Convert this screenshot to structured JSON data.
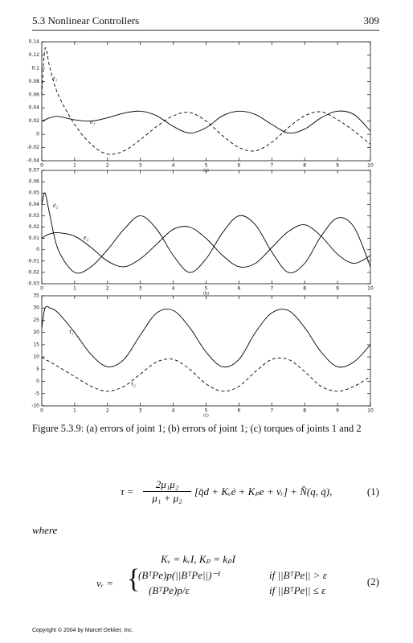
{
  "header": {
    "section": "5.3 Nonlinear Controllers",
    "page": "309"
  },
  "chart_data": [
    {
      "type": "line",
      "xlabel": "(a)",
      "xlim": [
        0,
        10
      ],
      "xticks": [
        0,
        1,
        2,
        3,
        4,
        5,
        6,
        7,
        8,
        9,
        10
      ],
      "ylim": [
        -0.04,
        0.14
      ],
      "yticks": [
        -0.04,
        -0.02,
        0,
        0.02,
        0.04,
        0.06,
        0.08,
        0.1,
        0.12,
        0.14
      ],
      "x": [
        0,
        0.1,
        0.25,
        0.5,
        1,
        1.5,
        2,
        2.5,
        3,
        3.5,
        4,
        4.5,
        5,
        5.5,
        6,
        6.5,
        7,
        7.5,
        8,
        8.5,
        9,
        9.5,
        10
      ],
      "series": [
        {
          "name": "ė₁",
          "color": "#000000",
          "dashed": true,
          "values": [
            0.06,
            0.13,
            0.1,
            0.06,
            0.015,
            -0.015,
            -0.03,
            -0.025,
            -0.008,
            0.012,
            0.028,
            0.033,
            0.02,
            -0.002,
            -0.02,
            -0.025,
            -0.012,
            0.01,
            0.028,
            0.034,
            0.022,
            0.005,
            -0.015
          ]
        },
        {
          "name": "e₁",
          "color": "#000000",
          "dashed": false,
          "values": [
            0.02,
            0.022,
            0.025,
            0.027,
            0.022,
            0.02,
            0.025,
            0.032,
            0.035,
            0.028,
            0.012,
            0.002,
            0.01,
            0.028,
            0.035,
            0.03,
            0.015,
            0.002,
            0.008,
            0.025,
            0.035,
            0.03,
            0.005
          ]
        }
      ]
    },
    {
      "type": "line",
      "xlabel": "(b)",
      "xlim": [
        0,
        10
      ],
      "xticks": [
        0,
        1,
        2,
        3,
        4,
        5,
        6,
        7,
        8,
        9,
        10
      ],
      "ylim": [
        -0.03,
        0.07
      ],
      "yticks": [
        -0.03,
        -0.02,
        -0.01,
        0,
        0.01,
        0.02,
        0.03,
        0.04,
        0.05,
        0.06,
        0.07
      ],
      "x": [
        0,
        0.1,
        0.25,
        0.5,
        1,
        1.5,
        2,
        2.5,
        3,
        3.5,
        4,
        4.5,
        5,
        5.5,
        6,
        6.5,
        7,
        7.5,
        8,
        8.5,
        9,
        9.5,
        10
      ],
      "series": [
        {
          "name": "ė₂",
          "color": "#000000",
          "dashed": false,
          "values": [
            0.04,
            0.05,
            0.03,
            0.0,
            -0.02,
            -0.015,
            0.0,
            0.018,
            0.03,
            0.018,
            -0.005,
            -0.02,
            -0.008,
            0.015,
            0.03,
            0.022,
            -0.002,
            -0.02,
            -0.012,
            0.012,
            0.028,
            0.02,
            -0.015
          ]
        },
        {
          "name": "e₂",
          "color": "#000000",
          "dashed": false,
          "values": [
            0.01,
            0.012,
            0.014,
            0.015,
            0.012,
            0.002,
            -0.01,
            -0.015,
            -0.008,
            0.005,
            0.018,
            0.02,
            0.01,
            -0.005,
            -0.015,
            -0.012,
            0.002,
            0.016,
            0.022,
            0.012,
            -0.004,
            -0.012,
            -0.005
          ]
        }
      ]
    },
    {
      "type": "line",
      "xlabel": "(c)",
      "xlim": [
        0,
        10
      ],
      "xticks": [
        0,
        1,
        2,
        3,
        4,
        5,
        6,
        7,
        8,
        9,
        10
      ],
      "ylim": [
        -10,
        35
      ],
      "yticks": [
        -10,
        -5,
        0,
        5,
        10,
        15,
        20,
        25,
        30,
        35
      ],
      "x": [
        0,
        0.1,
        0.25,
        0.5,
        1,
        1.5,
        2,
        2.5,
        3,
        3.5,
        4,
        4.5,
        5,
        5.5,
        6,
        6.5,
        7,
        7.5,
        8,
        8.5,
        9,
        9.5,
        10
      ],
      "series": [
        {
          "name": "τ₁",
          "color": "#000000",
          "dashed": false,
          "values": [
            22,
            30,
            30,
            28,
            20,
            11,
            6,
            9,
            19,
            28,
            29,
            22,
            12,
            6,
            9,
            20,
            28,
            29,
            22,
            12,
            6,
            8,
            15
          ]
        },
        {
          "name": "τ₂",
          "color": "#000000",
          "dashed": true,
          "values": [
            10,
            9,
            8,
            6,
            2,
            -2,
            -4,
            -2,
            3,
            8,
            9,
            5,
            -1,
            -4,
            -2,
            4,
            9,
            9,
            4,
            -2,
            -4,
            -2,
            2
          ]
        }
      ]
    }
  ],
  "caption": "Figure 5.3.9: (a) errors of joint 1; (b) errors of joint 1; (c) torques of joints 1 and 2",
  "equation1": {
    "lhs": "τ =",
    "numerator": "2μ₁μ₂",
    "denominator": "μ₁ + μ₂",
    "rest": "[q̈d + Kᵥė + Kₚe + vᵣ] + N̂(q, q̇),",
    "number": "(1)"
  },
  "where": "where",
  "equation2": {
    "gains": "Kᵥ = kᵥI,    Kₚ = kₚI",
    "lhs": "vᵣ =",
    "case1": "(BᵀPe)p(||BᵀPe||)⁻¹",
    "cond1": "if ||BᵀPe|| > ε",
    "case2": "(BᵀPe)p/ε",
    "cond2": "if ||BᵀPe|| ≤ ε",
    "number": "(2)"
  },
  "footer": "Copyright © 2004 by Marcel Dekker, Inc."
}
